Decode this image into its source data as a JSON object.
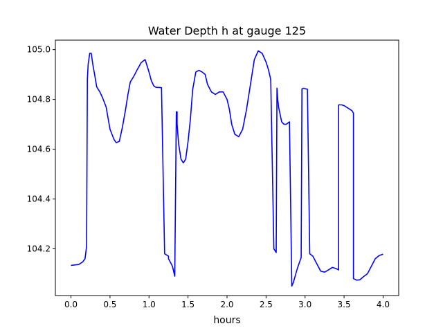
{
  "chart_data": {
    "type": "line",
    "title": "Water Depth h at gauge 125",
    "xlabel": "hours",
    "ylabel": "",
    "xlim": [
      -0.2,
      4.2
    ],
    "ylim": [
      104.012,
      105.038
    ],
    "xticks": [
      0.0,
      0.5,
      1.0,
      1.5,
      2.0,
      2.5,
      3.0,
      3.5,
      4.0
    ],
    "xtick_labels": [
      "0.0",
      "0.5",
      "1.0",
      "1.5",
      "2.0",
      "2.5",
      "3.0",
      "3.5",
      "4.0"
    ],
    "yticks": [
      104.2,
      104.4,
      104.6,
      104.8,
      105.0
    ],
    "ytick_labels": [
      "104.2",
      "104.4",
      "104.6",
      "104.8",
      "105.0"
    ],
    "grid": false,
    "series": [
      {
        "color": "#0000ff",
        "x": [
          0.0,
          0.1,
          0.15,
          0.18,
          0.2,
          0.21,
          0.22,
          0.24,
          0.26,
          0.28,
          0.3,
          0.33,
          0.37,
          0.4,
          0.45,
          0.5,
          0.55,
          0.58,
          0.62,
          0.66,
          0.7,
          0.73,
          0.76,
          0.8,
          0.85,
          0.9,
          0.95,
          1.0,
          1.03,
          1.06,
          1.08,
          1.1,
          1.13,
          1.16,
          1.2,
          1.25,
          1.25,
          1.3,
          1.33,
          1.35,
          1.36,
          1.36,
          1.38,
          1.41,
          1.44,
          1.47,
          1.5,
          1.53,
          1.56,
          1.6,
          1.64,
          1.68,
          1.72,
          1.75,
          1.8,
          1.85,
          1.9,
          1.95,
          2.0,
          2.03,
          2.06,
          2.1,
          2.15,
          2.2,
          2.25,
          2.3,
          2.35,
          2.4,
          2.45,
          2.5,
          2.53,
          2.56,
          2.6,
          2.63,
          2.64,
          2.65,
          2.66,
          2.68,
          2.7,
          2.73,
          2.76,
          2.8,
          2.83,
          2.83,
          2.85,
          2.9,
          2.95,
          2.96,
          2.96,
          2.98,
          3.0,
          3.03,
          3.06,
          3.06,
          3.1,
          3.15,
          3.2,
          3.25,
          3.3,
          3.35,
          3.4,
          3.43,
          3.43,
          3.47,
          3.5,
          3.55,
          3.6,
          3.62,
          3.62,
          3.66,
          3.7,
          3.75,
          3.8,
          3.85,
          3.9,
          3.95,
          4.0
        ],
        "y": [
          104.133,
          104.137,
          104.147,
          104.16,
          104.21,
          104.88,
          104.94,
          104.985,
          104.985,
          104.94,
          104.905,
          104.85,
          104.83,
          104.81,
          104.77,
          104.68,
          104.64,
          104.626,
          104.632,
          104.69,
          104.76,
          104.82,
          104.87,
          104.89,
          104.92,
          104.948,
          104.96,
          104.91,
          104.875,
          104.855,
          104.85,
          104.848,
          104.848,
          104.847,
          104.18,
          104.17,
          104.16,
          104.13,
          104.09,
          104.75,
          104.75,
          104.7,
          104.62,
          104.56,
          104.545,
          104.56,
          104.63,
          104.72,
          104.84,
          104.91,
          104.917,
          104.91,
          104.9,
          104.86,
          104.83,
          104.82,
          104.83,
          104.83,
          104.8,
          104.76,
          104.7,
          104.66,
          104.65,
          104.68,
          104.76,
          104.86,
          104.96,
          104.995,
          104.985,
          104.95,
          104.92,
          104.88,
          104.2,
          104.185,
          104.845,
          104.8,
          104.77,
          104.74,
          104.71,
          104.7,
          104.7,
          104.71,
          104.05,
          104.05,
          104.065,
          104.12,
          104.165,
          104.83,
          104.842,
          104.845,
          104.843,
          104.841,
          104.18,
          104.18,
          104.17,
          104.14,
          104.11,
          104.106,
          104.115,
          104.125,
          104.12,
          104.115,
          104.778,
          104.778,
          104.775,
          104.765,
          104.755,
          104.745,
          104.08,
          104.074,
          104.075,
          104.088,
          104.1,
          104.13,
          104.16,
          104.173,
          104.178
        ]
      }
    ]
  }
}
